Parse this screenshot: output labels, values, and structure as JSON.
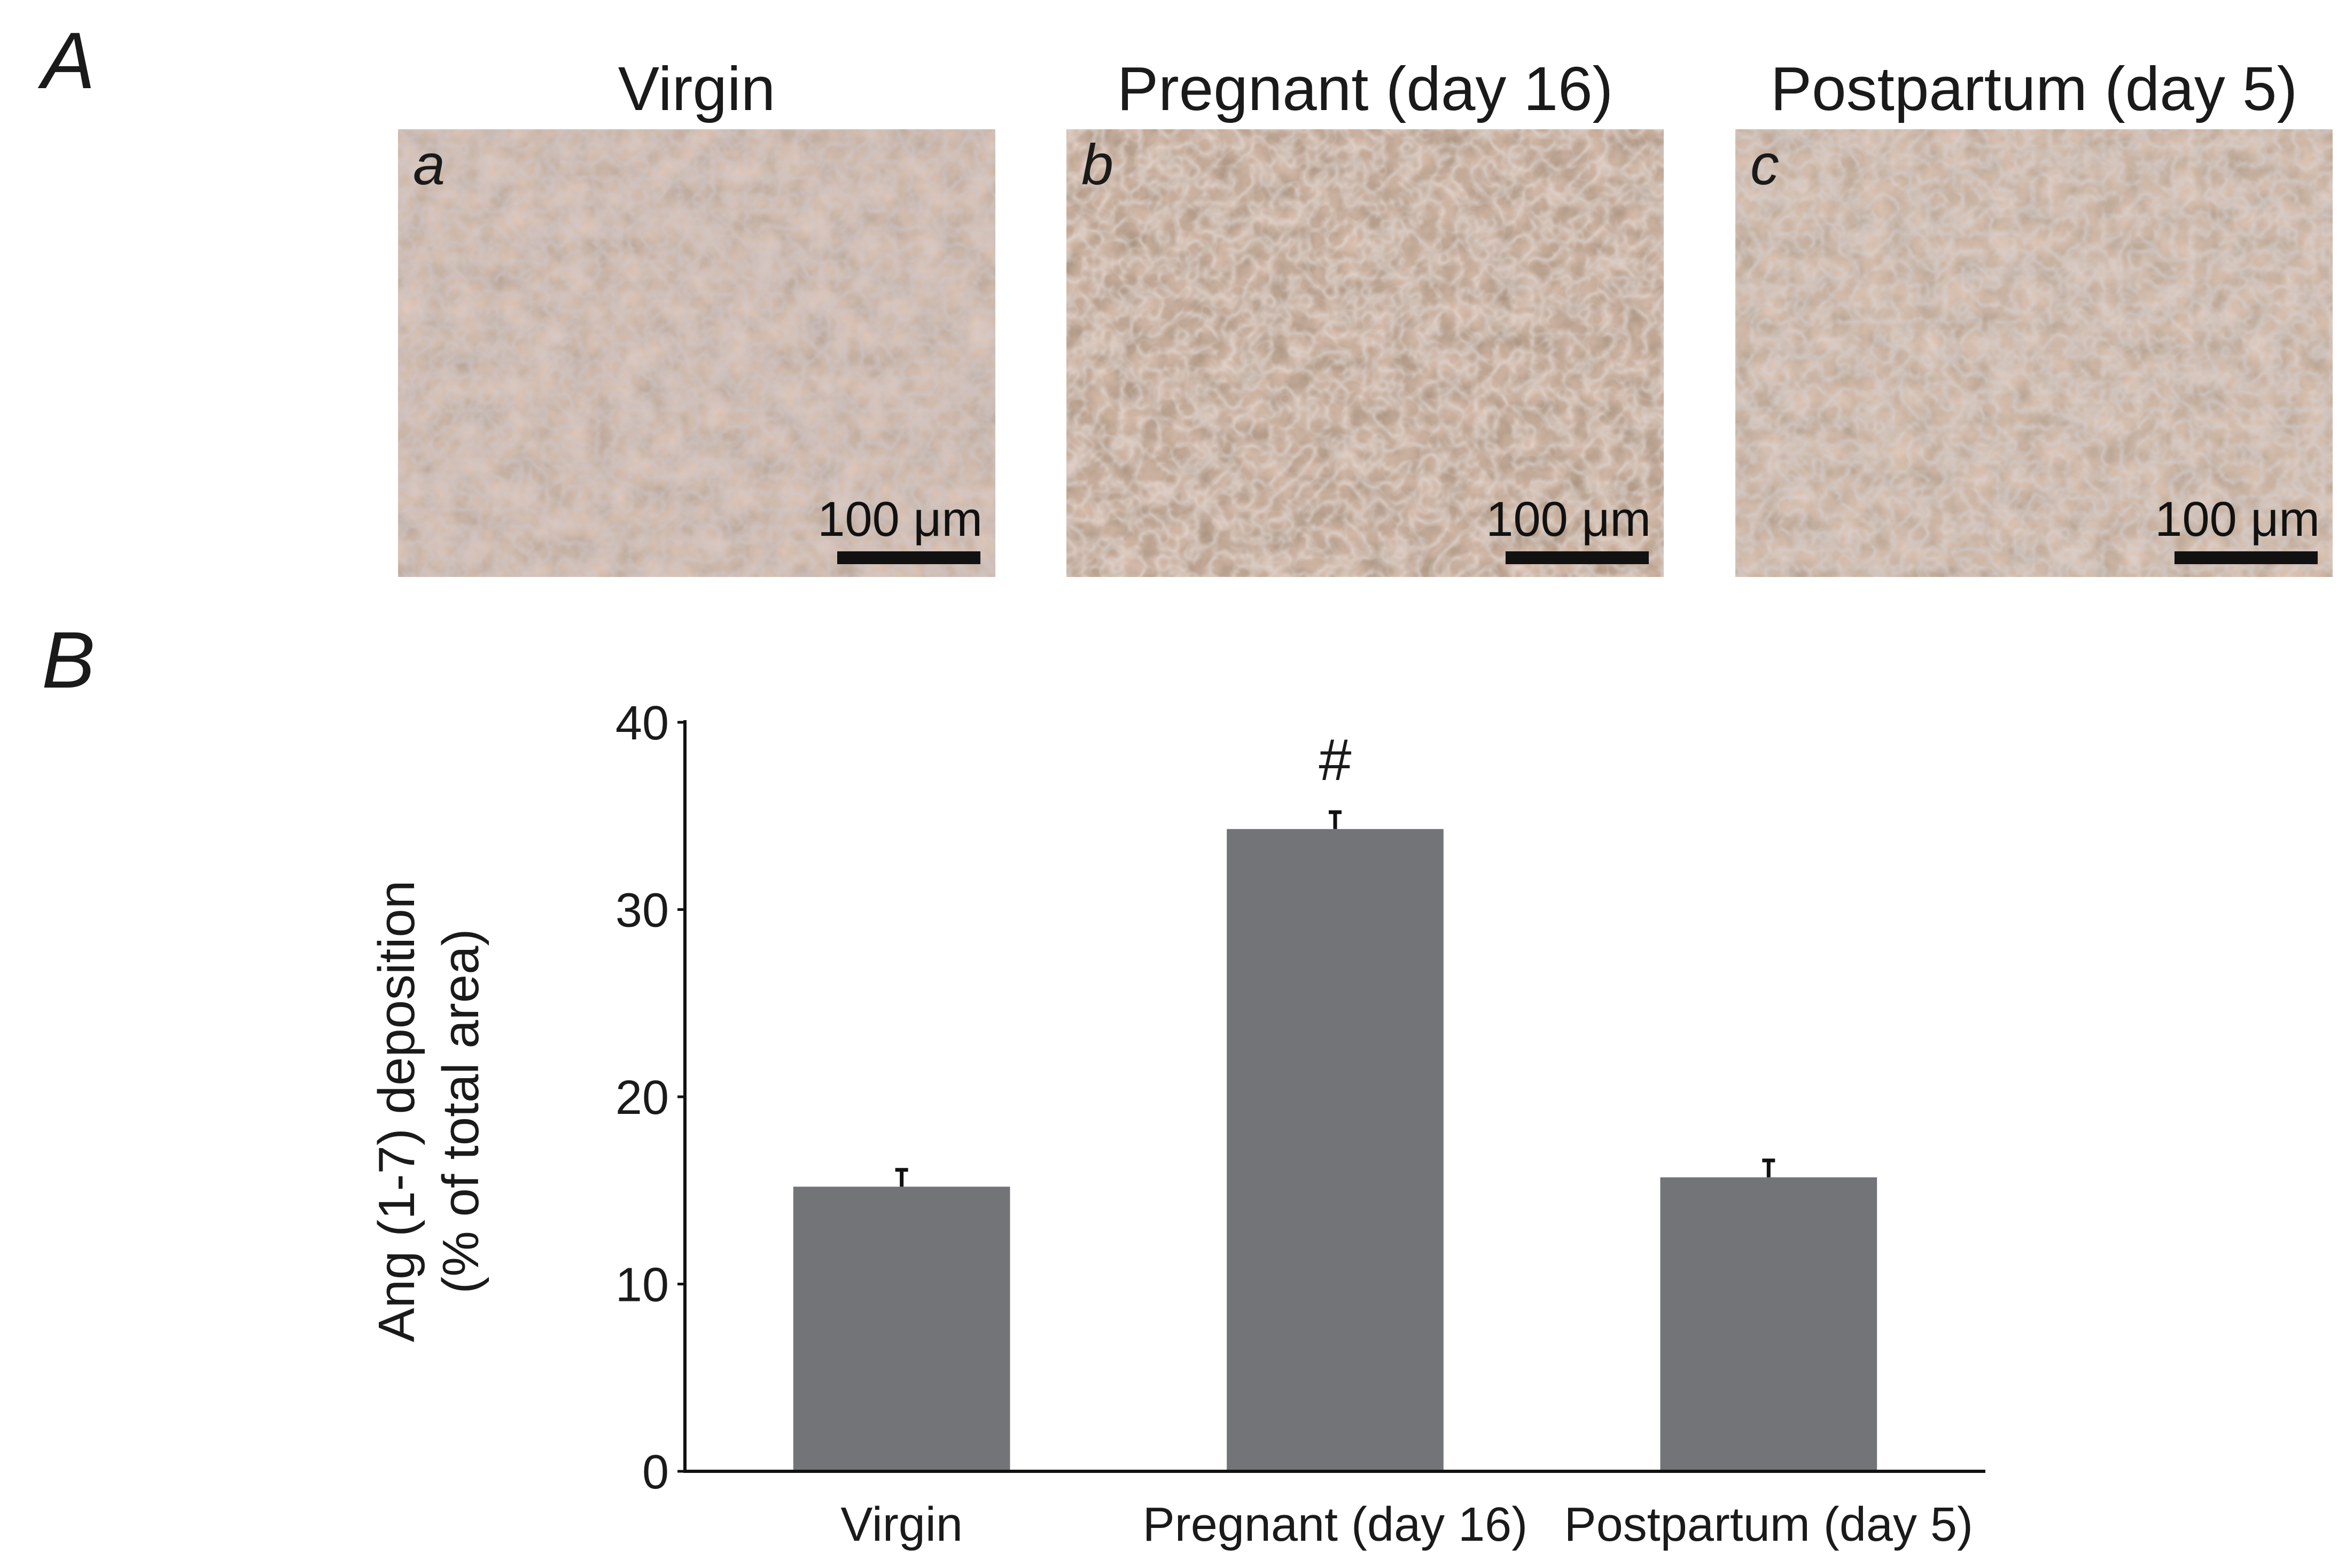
{
  "panel_a": {
    "letter": "A",
    "images": [
      {
        "title": "Virgin",
        "letter": "a",
        "scale": "100 μm"
      },
      {
        "title": "Pregnant (day 16)",
        "letter": "b",
        "scale": "100 μm"
      },
      {
        "title": "Postpartum (day 5)",
        "letter": "c",
        "scale": "100 μm"
      }
    ]
  },
  "panel_b": {
    "letter": "B"
  },
  "chart_data": {
    "type": "bar",
    "categories": [
      "Virgin",
      "Pregnant (day 16)",
      "Postpartum (day 5)"
    ],
    "values": [
      15.2,
      34.3,
      15.7
    ],
    "errors": [
      0.9,
      0.9,
      0.9
    ],
    "annotations": [
      "",
      "#",
      ""
    ],
    "ylabel_line1": "Ang (1-7) deposition",
    "ylabel_line2": "(% of total area)",
    "xlabel": "",
    "ylim": [
      0,
      40
    ],
    "yticks": [
      0,
      10,
      20,
      30,
      40
    ],
    "bar_color": "#737478",
    "grid": false
  }
}
